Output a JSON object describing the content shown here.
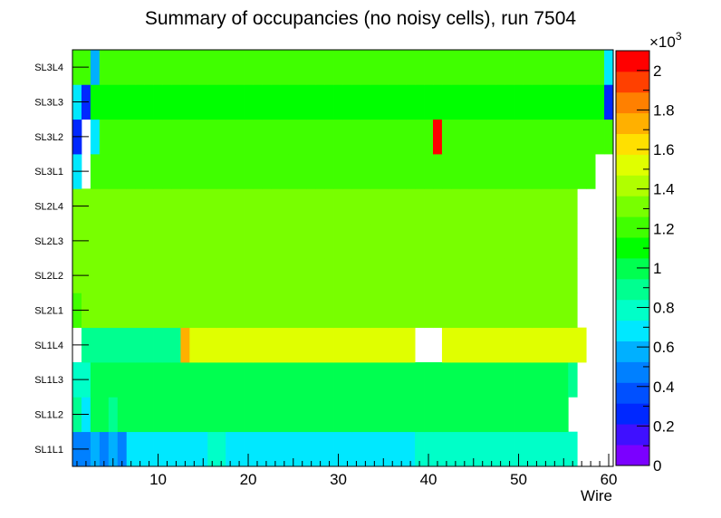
{
  "chart_data": {
    "type": "heatmap",
    "title": "Summary of occupancies (no noisy cells), run 7504",
    "xlabel": "Wire",
    "ylabel": "",
    "xlim": [
      0.5,
      60.5
    ],
    "x_ticks": [
      10,
      20,
      30,
      40,
      50,
      60
    ],
    "y_categories": [
      "SL1L1",
      "SL1L2",
      "SL1L3",
      "SL1L4",
      "SL2L1",
      "SL2L2",
      "SL2L3",
      "SL2L4",
      "SL3L1",
      "SL3L2",
      "SL3L3",
      "SL3L4"
    ],
    "z_range": [
      0,
      2100
    ],
    "z_multiplier_label": "×10",
    "z_multiplier_exponent": "3",
    "z_tick_labels": [
      "0",
      "0.2",
      "0.4",
      "0.6",
      "0.8",
      "1",
      "1.2",
      "1.4",
      "1.6",
      "1.8",
      "2"
    ],
    "z_tick_values": [
      0,
      200,
      400,
      600,
      800,
      1000,
      1200,
      1400,
      1600,
      1800,
      2000
    ],
    "palette": [
      "#7b00ff",
      "#3f10ff",
      "#0028ff",
      "#0050ff",
      "#0080ff",
      "#00b0ff",
      "#00e8ff",
      "#00ffc8",
      "#00ff90",
      "#00ff50",
      "#00ff00",
      "#40ff00",
      "#78ff00",
      "#b0ff00",
      "#e0ff00",
      "#ffe000",
      "#ffb000",
      "#ff8000",
      "#ff4000",
      "#ff0000"
    ],
    "rows": {
      "SL1L1": [
        450,
        450,
        550,
        450,
        550,
        450,
        650,
        650,
        650,
        650,
        650,
        650,
        650,
        650,
        650,
        750,
        750,
        650,
        650,
        650,
        650,
        650,
        650,
        650,
        650,
        650,
        650,
        650,
        650,
        650,
        650,
        650,
        650,
        650,
        650,
        650,
        650,
        650,
        750,
        750,
        750,
        750,
        750,
        750,
        750,
        750,
        750,
        750,
        750,
        750,
        750,
        750,
        750,
        750,
        750,
        750,
        null,
        null,
        null,
        null
      ],
      "SL1L2": [
        850,
        700,
        950,
        950,
        900,
        950,
        950,
        950,
        950,
        950,
        950,
        950,
        950,
        950,
        950,
        950,
        950,
        950,
        950,
        950,
        950,
        950,
        950,
        950,
        950,
        950,
        950,
        950,
        950,
        950,
        950,
        950,
        950,
        950,
        950,
        950,
        950,
        950,
        950,
        950,
        950,
        950,
        950,
        950,
        950,
        950,
        950,
        950,
        950,
        950,
        950,
        950,
        950,
        950,
        950,
        null,
        null,
        null,
        null,
        null
      ],
      "SL1L3": [
        750,
        750,
        950,
        950,
        950,
        950,
        950,
        950,
        950,
        950,
        950,
        950,
        950,
        950,
        950,
        950,
        950,
        950,
        950,
        950,
        950,
        950,
        950,
        950,
        950,
        950,
        950,
        950,
        950,
        950,
        950,
        950,
        950,
        950,
        950,
        950,
        950,
        950,
        950,
        950,
        950,
        950,
        950,
        950,
        950,
        950,
        950,
        950,
        950,
        950,
        950,
        950,
        950,
        950,
        950,
        900,
        null,
        null,
        null,
        null
      ],
      "SL1L4": [
        null,
        850,
        850,
        850,
        850,
        850,
        850,
        850,
        850,
        850,
        850,
        850,
        1750,
        1550,
        1550,
        1550,
        1550,
        1550,
        1550,
        1550,
        1550,
        1550,
        1550,
        1550,
        1550,
        1550,
        1550,
        1550,
        1550,
        1550,
        1550,
        1550,
        1550,
        1550,
        1550,
        1550,
        1550,
        1550,
        null,
        null,
        null,
        1550,
        1550,
        1550,
        1550,
        1550,
        1550,
        1550,
        1550,
        1550,
        1550,
        1550,
        1550,
        1550,
        1550,
        1550,
        1550,
        null,
        null,
        null
      ],
      "SL2L1": [
        1200,
        1300,
        1300,
        1300,
        1300,
        1300,
        1300,
        1300,
        1300,
        1300,
        1300,
        1300,
        1300,
        1300,
        1300,
        1300,
        1300,
        1300,
        1300,
        1300,
        1300,
        1300,
        1300,
        1300,
        1300,
        1300,
        1300,
        1300,
        1300,
        1300,
        1300,
        1300,
        1300,
        1300,
        1300,
        1300,
        1300,
        1300,
        1300,
        1300,
        1300,
        1300,
        1300,
        1300,
        1300,
        1300,
        1300,
        1300,
        1300,
        1300,
        1300,
        1300,
        1300,
        1300,
        1300,
        1300,
        null,
        null,
        null,
        null
      ],
      "SL2L2": [
        1300,
        1300,
        1300,
        1300,
        1300,
        1300,
        1300,
        1300,
        1300,
        1300,
        1300,
        1300,
        1300,
        1300,
        1300,
        1300,
        1300,
        1300,
        1300,
        1300,
        1300,
        1300,
        1300,
        1300,
        1300,
        1300,
        1300,
        1300,
        1300,
        1300,
        1300,
        1300,
        1300,
        1300,
        1300,
        1300,
        1300,
        1300,
        1300,
        1300,
        1300,
        1300,
        1300,
        1300,
        1300,
        1300,
        1300,
        1300,
        1300,
        1300,
        1300,
        1300,
        1300,
        1300,
        1300,
        1300,
        null,
        null,
        null,
        null
      ],
      "SL2L3": [
        1300,
        1300,
        1300,
        1300,
        1300,
        1300,
        1300,
        1300,
        1300,
        1300,
        1300,
        1300,
        1300,
        1300,
        1300,
        1300,
        1300,
        1300,
        1300,
        1300,
        1300,
        1300,
        1300,
        1300,
        1300,
        1300,
        1300,
        1300,
        1300,
        1300,
        1300,
        1300,
        1300,
        1300,
        1300,
        1300,
        1300,
        1300,
        1300,
        1300,
        1300,
        1300,
        1300,
        1300,
        1300,
        1300,
        1300,
        1300,
        1300,
        1300,
        1300,
        1300,
        1300,
        1300,
        1300,
        1300,
        null,
        null,
        null,
        null
      ],
      "SL2L4": [
        1300,
        1300,
        1300,
        1300,
        1300,
        1300,
        1300,
        1300,
        1300,
        1300,
        1300,
        1300,
        1300,
        1300,
        1300,
        1300,
        1300,
        1300,
        1300,
        1300,
        1300,
        1300,
        1300,
        1300,
        1300,
        1300,
        1300,
        1300,
        1300,
        1300,
        1300,
        1300,
        1300,
        1300,
        1300,
        1300,
        1300,
        1300,
        1300,
        1300,
        1300,
        1300,
        1300,
        1300,
        1300,
        1300,
        1300,
        1300,
        1300,
        1300,
        1300,
        1300,
        1300,
        1300,
        1300,
        1300,
        null,
        null,
        null,
        null
      ],
      "SL3L1": [
        700,
        null,
        1200,
        1200,
        1200,
        1200,
        1200,
        1200,
        1200,
        1200,
        1200,
        1200,
        1200,
        1200,
        1200,
        1200,
        1200,
        1200,
        1200,
        1200,
        1200,
        1200,
        1200,
        1200,
        1200,
        1200,
        1200,
        1200,
        1200,
        1200,
        1200,
        1200,
        1200,
        1200,
        1200,
        1200,
        1200,
        1200,
        1200,
        1200,
        1200,
        1200,
        1200,
        1200,
        1200,
        1200,
        1200,
        1200,
        1200,
        1200,
        1200,
        1200,
        1200,
        1200,
        1200,
        1200,
        1200,
        1200,
        null,
        null
      ],
      "SL3L2": [
        300,
        null,
        700,
        1200,
        1200,
        1200,
        1200,
        1200,
        1200,
        1200,
        1200,
        1200,
        1200,
        1200,
        1200,
        1200,
        1200,
        1200,
        1200,
        1200,
        1200,
        1200,
        1200,
        1200,
        1200,
        1200,
        1200,
        1200,
        1200,
        1200,
        1200,
        1200,
        1200,
        1200,
        1200,
        1200,
        1200,
        1200,
        1200,
        1200,
        2000,
        1200,
        1200,
        1200,
        1200,
        1200,
        1200,
        1200,
        1200,
        1200,
        1200,
        1200,
        1200,
        1200,
        1200,
        1200,
        1200,
        1200,
        1200,
        1200
      ],
      "SL3L3": [
        650,
        300,
        1150,
        1150,
        1150,
        1150,
        1150,
        1150,
        1150,
        1150,
        1150,
        1150,
        1150,
        1150,
        1150,
        1150,
        1150,
        1150,
        1150,
        1150,
        1150,
        1150,
        1150,
        1150,
        1150,
        1150,
        1150,
        1150,
        1150,
        1150,
        1150,
        1150,
        1150,
        1150,
        1150,
        1150,
        1150,
        1150,
        1150,
        1150,
        1150,
        1150,
        1150,
        1150,
        1150,
        1150,
        1150,
        1150,
        1150,
        1150,
        1150,
        1150,
        1150,
        1150,
        1150,
        1150,
        1150,
        1150,
        1150,
        300
      ],
      "SL3L4": [
        1200,
        1200,
        600,
        1200,
        1200,
        1200,
        1200,
        1200,
        1200,
        1200,
        1200,
        1200,
        1200,
        1200,
        1200,
        1200,
        1200,
        1200,
        1200,
        1200,
        1200,
        1200,
        1200,
        1200,
        1200,
        1200,
        1200,
        1200,
        1200,
        1200,
        1200,
        1200,
        1200,
        1200,
        1200,
        1200,
        1200,
        1200,
        1200,
        1200,
        1200,
        1200,
        1200,
        1200,
        1200,
        1200,
        1200,
        1200,
        1200,
        1200,
        1200,
        1200,
        1200,
        1200,
        1200,
        1200,
        1200,
        1200,
        1200,
        700
      ]
    }
  }
}
